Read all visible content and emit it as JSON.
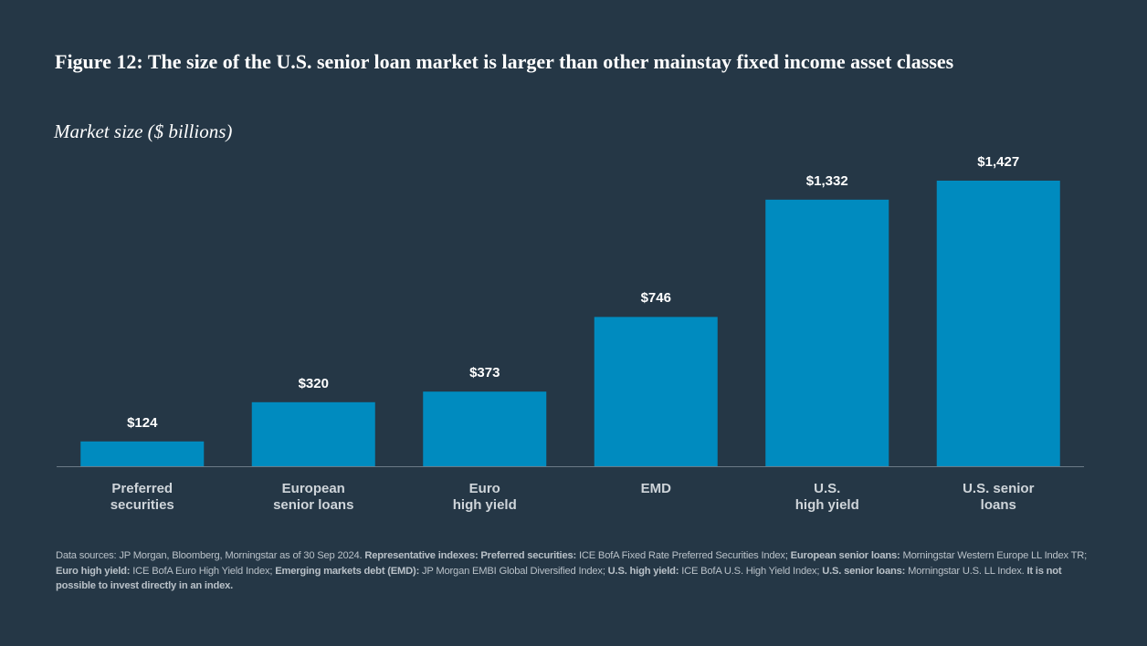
{
  "chart_data": {
    "type": "bar",
    "title": "Figure 12: The size of the U.S. senior loan market is larger than other mainstay fixed income asset classes",
    "subtitle": "Market size ($ billions)",
    "categories": [
      "Preferred\nsecurities",
      "European\nsenior loans",
      "Euro\nhigh yield",
      "EMD",
      "U.S.\nhigh yield",
      "U.S. senior\nloans"
    ],
    "values": [
      124,
      320,
      373,
      746,
      1332,
      1427
    ],
    "value_labels": [
      "$124",
      "$320",
      "$373",
      "$746",
      "$1,332",
      "$1,427"
    ],
    "color": "#008bbf",
    "footnote": [
      "Data sources: JP Morgan, Bloomberg, Morningstar as of 30 Sep 2024.",
      "Representative indexes: Preferred securities:",
      "ICE BofA Fixed Rate Preferred Securities Index;",
      "European senior loans:",
      "Morningstar Western Europe LL Index TR;",
      "Euro high yield:",
      "ICE BofA Euro High Yield Index;",
      "Emerging markets debt (EMD):",
      "JP Morgan EMBI Global Diversified Index;",
      "U.S. high yield:",
      "ICE BofA U.S. High Yield Index;",
      "U.S. senior loans:",
      "Morningstar U.S. LL Index.",
      "It is not possible to invest directly in an index."
    ]
  }
}
